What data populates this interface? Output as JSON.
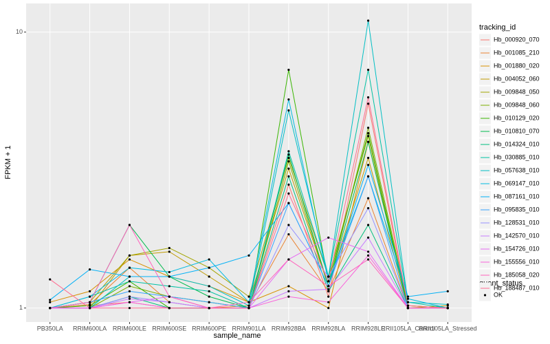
{
  "chart_data": {
    "type": "line",
    "x_label": "sample_name",
    "y_label": "FPKM + 1",
    "categories": [
      "PB350LA",
      "RRIM600LA",
      "RRIM600LE",
      "RRIM600SE",
      "RRIM600PE",
      "RRIM901LA",
      "RRIM928BA",
      "RRIM928LA",
      "RRIM928LE",
      "RRII105LA_Control",
      "RRII105LA_Stressed"
    ],
    "log_scale": true,
    "grid": true,
    "legend_position": "right",
    "point_color": "#000000",
    "ylim": [
      0.89,
      12.7
    ],
    "yticks": [
      1,
      10
    ],
    "legend_title": "tracking_id",
    "point_legend": {
      "title": "quant_status",
      "labels": [
        "OK"
      ]
    },
    "series": [
      {
        "name": "Hb_000920_070",
        "color": "#F8766D",
        "values": [
          1.0,
          1.02,
          1.05,
          1.0,
          1.0,
          1.0,
          2.8,
          1.1,
          5.5,
          1.0,
          1.0
        ]
      },
      {
        "name": "Hb_001085_210",
        "color": "#EA8331",
        "values": [
          1.0,
          1.03,
          1.4,
          1.05,
          1.0,
          1.02,
          1.85,
          1.15,
          2.5,
          1.0,
          1.0
        ]
      },
      {
        "name": "Hb_001880_020",
        "color": "#D89000",
        "values": [
          1.05,
          1.15,
          1.5,
          1.3,
          1.2,
          1.05,
          1.2,
          1.0,
          4.0,
          1.02,
          1.0
        ]
      },
      {
        "name": "Hb_004052_060",
        "color": "#C09B00",
        "values": [
          1.0,
          1.0,
          1.55,
          1.6,
          1.3,
          1.05,
          3.2,
          1.2,
          3.5,
          1.0,
          1.02
        ]
      },
      {
        "name": "Hb_009848_050",
        "color": "#A3A500",
        "values": [
          1.0,
          1.05,
          1.55,
          1.65,
          1.4,
          1.1,
          3.5,
          1.3,
          4.2,
          1.0,
          1.0
        ]
      },
      {
        "name": "Hb_009848_060",
        "color": "#7CAE00",
        "values": [
          1.0,
          1.0,
          1.2,
          1.1,
          1.05,
          1.0,
          3.4,
          1.2,
          4.5,
          1.02,
          1.0
        ]
      },
      {
        "name": "Hb_010129_020",
        "color": "#39B600",
        "values": [
          1.0,
          1.02,
          1.25,
          1.0,
          1.0,
          1.0,
          7.3,
          1.25,
          4.3,
          1.0,
          1.0
        ]
      },
      {
        "name": "Hb_010810_070",
        "color": "#00BB4E",
        "values": [
          1.0,
          1.05,
          2.0,
          1.3,
          1.1,
          1.0,
          3.6,
          1.2,
          4.0,
          1.0,
          1.0
        ]
      },
      {
        "name": "Hb_014324_010",
        "color": "#00BF7D",
        "values": [
          1.0,
          1.0,
          1.1,
          1.0,
          1.0,
          1.0,
          3.0,
          1.15,
          2.0,
          1.0,
          1.0
        ]
      },
      {
        "name": "Hb_030885_010",
        "color": "#00C1A3",
        "values": [
          1.0,
          1.1,
          1.25,
          1.2,
          1.15,
          1.0,
          3.7,
          1.3,
          7.3,
          1.05,
          1.0
        ]
      },
      {
        "name": "Hb_057638_010",
        "color": "#00BFC4",
        "values": [
          1.0,
          1.0,
          1.3,
          1.3,
          1.2,
          1.02,
          5.2,
          1.3,
          11.0,
          1.05,
          1.03
        ]
      },
      {
        "name": "Hb_069147_010",
        "color": "#00BAE0",
        "values": [
          1.0,
          1.1,
          1.4,
          1.35,
          1.5,
          1.05,
          5.7,
          1.25,
          3.0,
          1.08,
          1.0
        ]
      },
      {
        "name": "Hb_087161_010",
        "color": "#00B0F6",
        "values": [
          1.07,
          1.38,
          1.3,
          1.3,
          1.4,
          1.55,
          2.4,
          1.2,
          3.3,
          1.1,
          1.15
        ]
      },
      {
        "name": "Hb_095835_010",
        "color": "#35A2FF",
        "values": [
          1.0,
          1.05,
          1.15,
          1.1,
          1.05,
          1.0,
          2.4,
          1.2,
          3.0,
          1.0,
          1.0
        ]
      },
      {
        "name": "Hb_128531_010",
        "color": "#9590FF",
        "values": [
          1.0,
          1.0,
          1.1,
          1.05,
          1.0,
          1.0,
          2.0,
          1.3,
          2.3,
          1.0,
          1.0
        ]
      },
      {
        "name": "Hb_142570_010",
        "color": "#C77CFF",
        "values": [
          1.0,
          1.0,
          1.08,
          1.05,
          1.0,
          1.0,
          1.15,
          1.17,
          1.8,
          1.0,
          1.0
        ]
      },
      {
        "name": "Hb_154726_010",
        "color": "#E76BF3",
        "values": [
          1.0,
          1.0,
          1.05,
          1.1,
          1.0,
          1.0,
          1.5,
          1.8,
          1.6,
          1.0,
          1.0
        ]
      },
      {
        "name": "Hb_155556_010",
        "color": "#FA62DB",
        "values": [
          1.0,
          1.0,
          1.05,
          1.0,
          1.0,
          1.0,
          1.1,
          1.05,
          1.55,
          1.0,
          1.0
        ]
      },
      {
        "name": "Hb_185058_020",
        "color": "#FF62BC",
        "values": [
          1.0,
          1.05,
          2.0,
          1.1,
          1.0,
          1.05,
          1.5,
          1.2,
          1.5,
          1.0,
          1.0
        ]
      },
      {
        "name": "Hb_188487_010",
        "color": "#FF6C91",
        "values": [
          1.27,
          1.0,
          1.0,
          1.0,
          1.0,
          1.0,
          2.6,
          1.25,
          5.8,
          1.02,
          1.0
        ]
      }
    ]
  }
}
